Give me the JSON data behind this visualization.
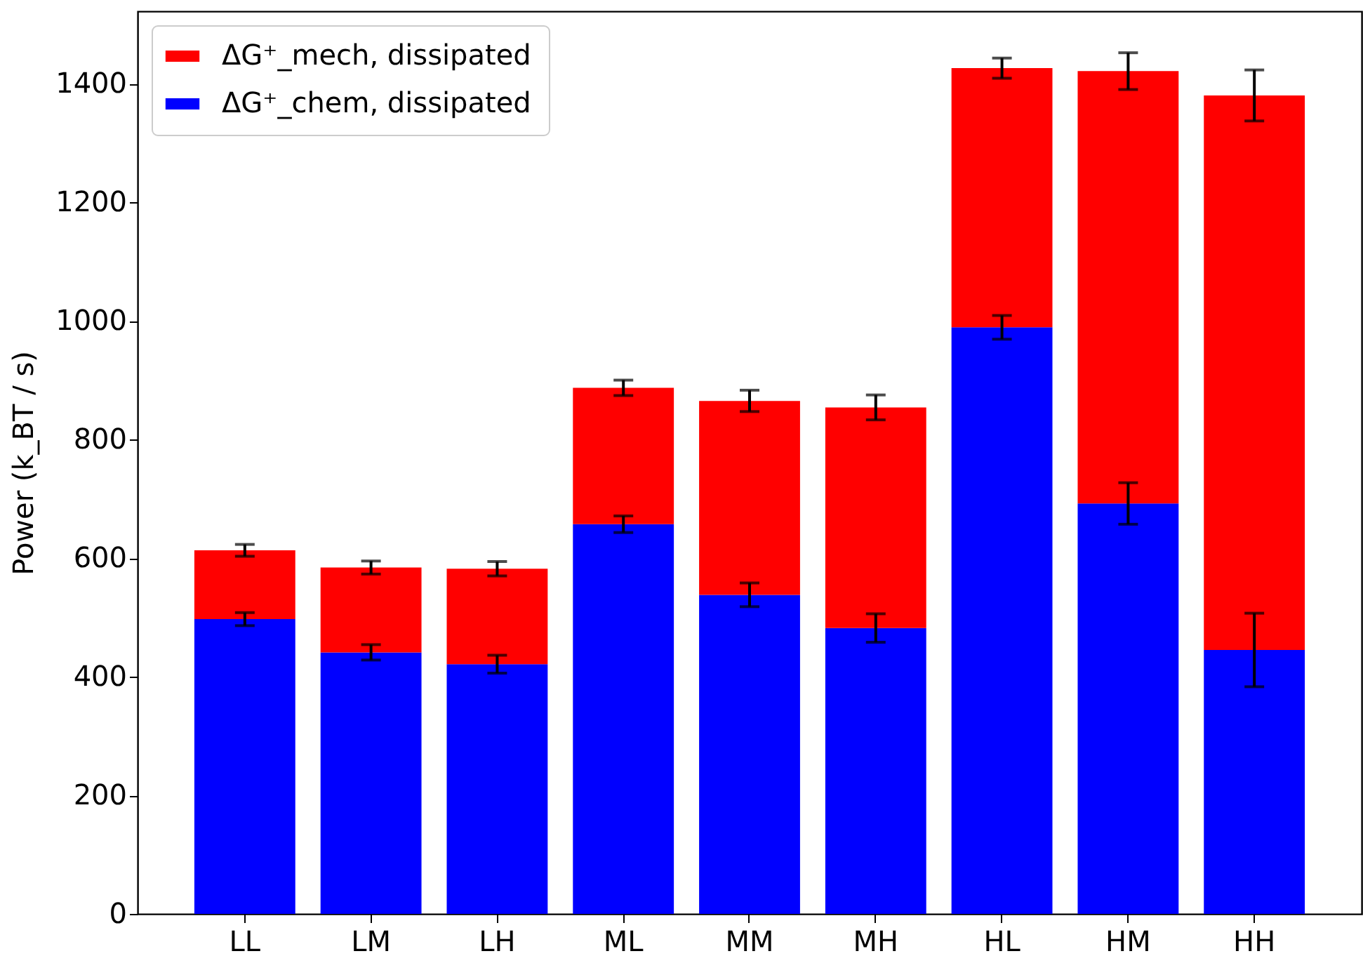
{
  "chart_data": {
    "type": "bar",
    "stacked": true,
    "categories": [
      "LL",
      "LM",
      "LH",
      "ML",
      "MM",
      "MH",
      "HL",
      "HM",
      "HH"
    ],
    "ylabel": "Power (k_BT / s)",
    "ylim": [
      0,
      1522
    ],
    "yticks": [
      0,
      200,
      400,
      600,
      800,
      1000,
      1200,
      1400
    ],
    "legend": "top left",
    "series": [
      {
        "name": "ΔG⁺_chem, dissipated",
        "color": "#0000ff",
        "values": [
          497,
          441,
          421,
          657,
          538,
          482,
          989,
          692,
          445
        ],
        "errors": [
          11,
          13,
          15,
          14,
          20,
          24,
          20,
          35,
          62
        ]
      },
      {
        "name": "ΔG⁺_mech, dissipated",
        "color": "#ff0000",
        "values": [
          116,
          143,
          161,
          230,
          327,
          372,
          437,
          729,
          935
        ],
        "errors": [
          10,
          11,
          12,
          13,
          18,
          21,
          17,
          31,
          43
        ]
      }
    ]
  }
}
